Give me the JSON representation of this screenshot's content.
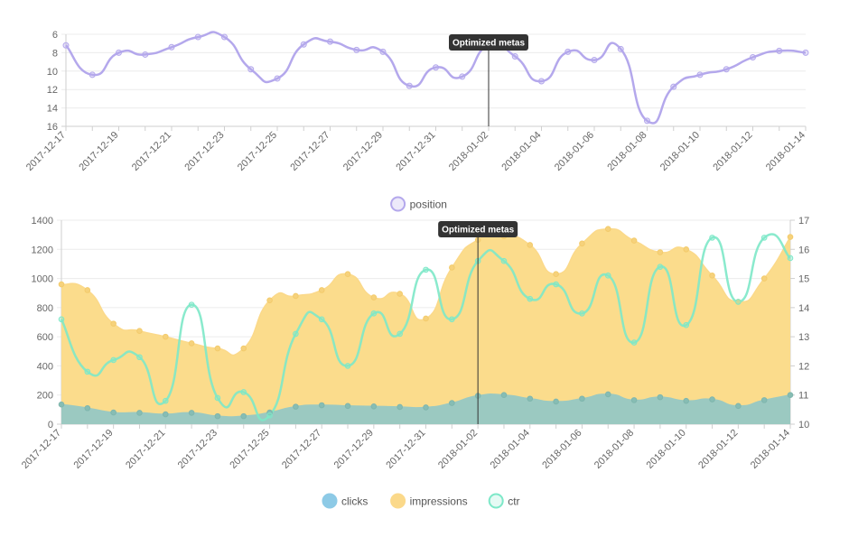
{
  "chart_data": [
    {
      "type": "line",
      "title": "",
      "y_reversed": true,
      "ylim": [
        6,
        16
      ],
      "yticks": [
        6,
        8,
        10,
        12,
        14,
        16
      ],
      "x": [
        "2017-12-17",
        "2017-12-18",
        "2017-12-19",
        "2017-12-20",
        "2017-12-21",
        "2017-12-22",
        "2017-12-23",
        "2017-12-24",
        "2017-12-25",
        "2017-12-26",
        "2017-12-27",
        "2017-12-28",
        "2017-12-29",
        "2017-12-30",
        "2017-12-31",
        "2018-01-01",
        "2018-01-02",
        "2018-01-03",
        "2018-01-04",
        "2018-01-05",
        "2018-01-06",
        "2018-01-07",
        "2018-01-08",
        "2018-01-09",
        "2018-01-10",
        "2018-01-11",
        "2018-01-12",
        "2018-01-13",
        "2018-01-14"
      ],
      "xticks": [
        "2017-12-17",
        "2017-12-19",
        "2017-12-21",
        "2017-12-23",
        "2017-12-25",
        "2017-12-27",
        "2017-12-29",
        "2017-12-31",
        "2018-01-02",
        "2018-01-04",
        "2018-01-06",
        "2018-01-08",
        "2018-01-10",
        "2018-01-12",
        "2018-01-14"
      ],
      "series": [
        {
          "name": "position",
          "color": "#b4a8ec",
          "values": [
            7.2,
            10.4,
            8.0,
            8.2,
            7.4,
            6.3,
            6.3,
            9.8,
            10.8,
            7.1,
            6.8,
            7.7,
            7.9,
            11.6,
            9.6,
            10.6,
            7.2,
            8.4,
            11.1,
            7.9,
            8.8,
            7.6,
            15.4,
            11.7,
            10.4,
            9.8,
            8.5,
            7.8,
            8.0
          ]
        }
      ],
      "annotation": {
        "label": "Optimized metas",
        "x": "2018-01-02"
      },
      "legend": "bottom-center"
    },
    {
      "type": "area",
      "title": "",
      "ylim": [
        0,
        1400
      ],
      "yticks": [
        0,
        200,
        400,
        600,
        800,
        1000,
        1200,
        1400
      ],
      "y2lim": [
        10,
        17
      ],
      "y2ticks": [
        10,
        11,
        12,
        13,
        14,
        15,
        16,
        17
      ],
      "x": [
        "2017-12-17",
        "2017-12-18",
        "2017-12-19",
        "2017-12-20",
        "2017-12-21",
        "2017-12-22",
        "2017-12-23",
        "2017-12-24",
        "2017-12-25",
        "2017-12-26",
        "2017-12-27",
        "2017-12-28",
        "2017-12-29",
        "2017-12-30",
        "2017-12-31",
        "2018-01-01",
        "2018-01-02",
        "2018-01-03",
        "2018-01-04",
        "2018-01-05",
        "2018-01-06",
        "2018-01-07",
        "2018-01-08",
        "2018-01-09",
        "2018-01-10",
        "2018-01-11",
        "2018-01-12",
        "2018-01-13",
        "2018-01-14"
      ],
      "xticks": [
        "2017-12-17",
        "2017-12-19",
        "2017-12-21",
        "2017-12-23",
        "2017-12-25",
        "2017-12-27",
        "2017-12-29",
        "2017-12-31",
        "2018-01-02",
        "2018-01-04",
        "2018-01-06",
        "2018-01-08",
        "2018-01-10",
        "2018-01-12",
        "2018-01-14"
      ],
      "series": [
        {
          "name": "clicks",
          "axis": "left",
          "color": "#8dcae6",
          "fill": "#9bc9c1",
          "values": [
            135,
            110,
            80,
            78,
            68,
            78,
            55,
            55,
            80,
            120,
            130,
            125,
            122,
            118,
            115,
            145,
            195,
            200,
            175,
            155,
            175,
            205,
            165,
            185,
            160,
            170,
            125,
            165,
            200
          ]
        },
        {
          "name": "impressions",
          "axis": "left",
          "color": "#fbd98a",
          "fill": "#fbdc8c",
          "values": [
            960,
            920,
            690,
            640,
            600,
            555,
            520,
            520,
            850,
            880,
            920,
            1030,
            870,
            895,
            725,
            1075,
            1265,
            1290,
            1230,
            1030,
            1240,
            1340,
            1260,
            1180,
            1200,
            1020,
            840,
            1000,
            1285
          ]
        },
        {
          "name": "ctr",
          "axis": "right",
          "color": "#7de8c8",
          "values": [
            13.6,
            11.8,
            12.2,
            12.3,
            10.8,
            14.1,
            10.9,
            11.1,
            10.3,
            13.1,
            13.6,
            12.0,
            13.8,
            13.1,
            15.3,
            13.6,
            15.6,
            15.6,
            14.3,
            14.8,
            13.8,
            15.1,
            12.8,
            15.4,
            13.4,
            16.4,
            14.2,
            16.4,
            15.7
          ]
        }
      ],
      "annotation": {
        "label": "Optimized metas",
        "x": "2018-01-02"
      },
      "legend": "bottom-center"
    }
  ]
}
